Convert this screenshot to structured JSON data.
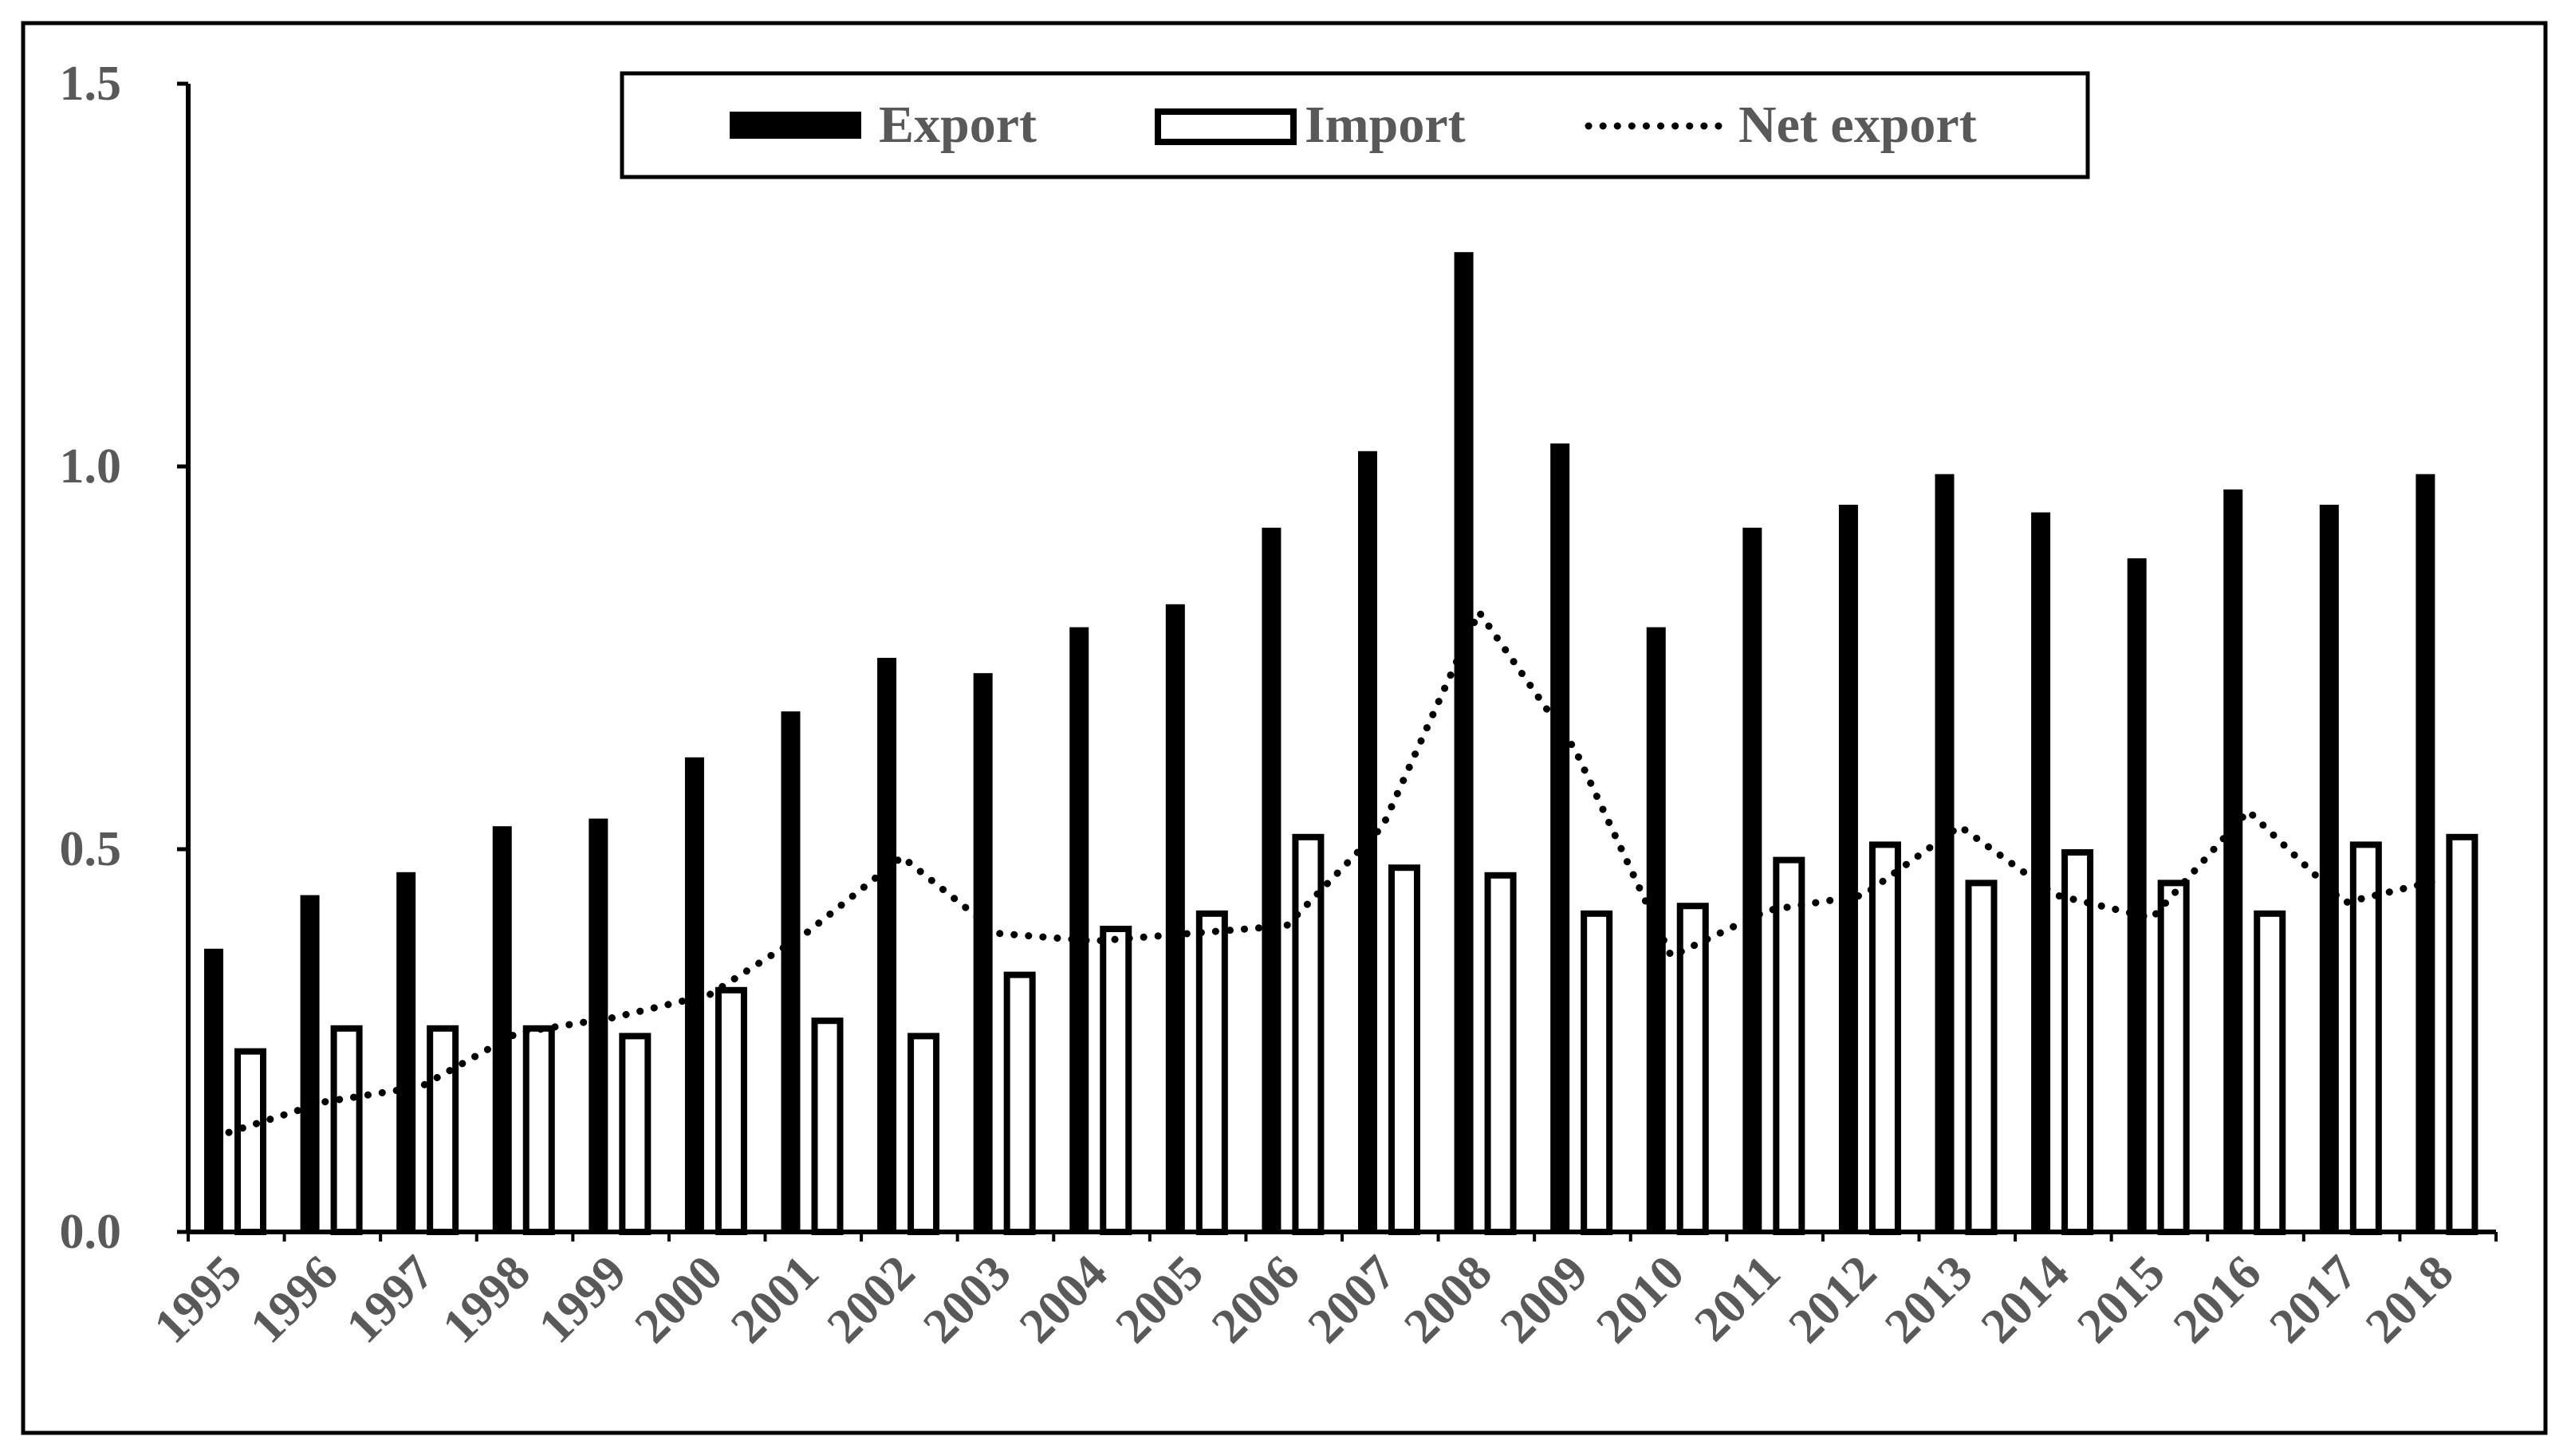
{
  "chart_data": {
    "type": "bar",
    "categories": [
      "1995",
      "1996",
      "1997",
      "1998",
      "1999",
      "2000",
      "2001",
      "2002",
      "2003",
      "2004",
      "2005",
      "2006",
      "2007",
      "2008",
      "2009",
      "2010",
      "2011",
      "2012",
      "2013",
      "2014",
      "2015",
      "2016",
      "2017",
      "2018"
    ],
    "series": [
      {
        "name": "Export",
        "kind": "bar",
        "style": "filled",
        "color": "#000000",
        "values": [
          0.37,
          0.44,
          0.47,
          0.53,
          0.54,
          0.62,
          0.68,
          0.75,
          0.73,
          0.79,
          0.82,
          0.92,
          1.02,
          1.28,
          1.03,
          0.79,
          0.92,
          0.95,
          0.99,
          0.94,
          0.88,
          0.97,
          0.95,
          0.99
        ]
      },
      {
        "name": "Import",
        "kind": "bar",
        "style": "outlined",
        "color": "#000000",
        "values": [
          0.24,
          0.27,
          0.27,
          0.27,
          0.26,
          0.32,
          0.28,
          0.26,
          0.34,
          0.4,
          0.42,
          0.52,
          0.48,
          0.47,
          0.42,
          0.43,
          0.49,
          0.51,
          0.46,
          0.5,
          0.46,
          0.42,
          0.51,
          0.52
        ]
      },
      {
        "name": "Net export",
        "kind": "line",
        "style": "dotted",
        "color": "#000000",
        "values": [
          0.13,
          0.17,
          0.19,
          0.26,
          0.28,
          0.31,
          0.39,
          0.49,
          0.39,
          0.38,
          0.39,
          0.4,
          0.53,
          0.81,
          0.63,
          0.36,
          0.42,
          0.44,
          0.53,
          0.44,
          0.41,
          0.55,
          0.43,
          0.46
        ]
      }
    ],
    "title": "",
    "xlabel": "",
    "ylabel": "",
    "ylim": [
      0,
      1.5
    ],
    "yticks": [
      "0.0",
      "0.5",
      "1.0",
      "1.5"
    ],
    "grid": false,
    "legend_position": "top-center",
    "x_tick_rotation": "diagonal"
  }
}
